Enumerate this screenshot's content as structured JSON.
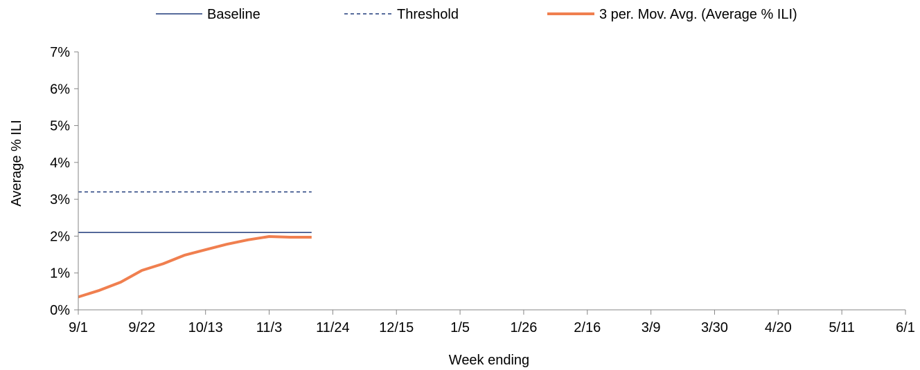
{
  "chart_data": {
    "type": "line",
    "xlabel": "Week ending",
    "ylabel": "Average % ILI",
    "x_tick_labels": [
      "9/1",
      "9/22",
      "10/13",
      "11/3",
      "11/24",
      "12/15",
      "1/5",
      "1/26",
      "2/16",
      "3/9",
      "3/30",
      "4/20",
      "5/11",
      "6/1"
    ],
    "y_tick_labels": [
      "0%",
      "1%",
      "2%",
      "3%",
      "4%",
      "5%",
      "6%",
      "7%"
    ],
    "ylim": [
      0,
      7
    ],
    "x_weeks": 39,
    "grid": false,
    "legend_position": "top",
    "series": [
      {
        "name": "Baseline",
        "style": "solid",
        "color": "#1f3a7a",
        "x": [
          0,
          11
        ],
        "y": [
          2.1,
          2.1
        ]
      },
      {
        "name": "Threshold",
        "style": "dashed",
        "color": "#1f3a7a",
        "x": [
          0,
          11
        ],
        "y": [
          3.2,
          3.2
        ]
      },
      {
        "name": "3 per. Mov. Avg. (Average % ILI)",
        "style": "thick",
        "color": "#f07f4f",
        "x": [
          0,
          1,
          2,
          3,
          4,
          5,
          6,
          7,
          8,
          9,
          10,
          11
        ],
        "y": [
          0.35,
          0.53,
          0.75,
          1.07,
          1.25,
          1.48,
          1.63,
          1.78,
          1.9,
          1.99,
          1.97,
          1.97
        ]
      }
    ]
  }
}
